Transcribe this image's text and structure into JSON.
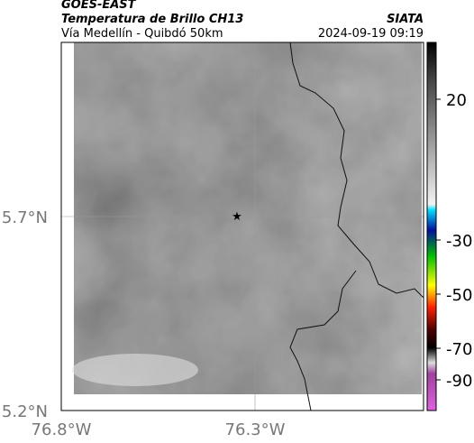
{
  "header": {
    "title": "GOES-EAST",
    "subtitle": "Temperatura de Brillo CH13",
    "source": "SIATA",
    "region": "Vía Medellín - Quibdó 50km",
    "timestamp": "2024-09-19 09:19"
  },
  "map": {
    "lat_labels": [
      "5.7°N",
      "5.2°N"
    ],
    "lon_labels": [
      "76.8°W",
      "76.3°W"
    ]
  },
  "colorbar": {
    "ticks": [
      20,
      -30,
      -50,
      -70,
      -90
    ]
  }
}
